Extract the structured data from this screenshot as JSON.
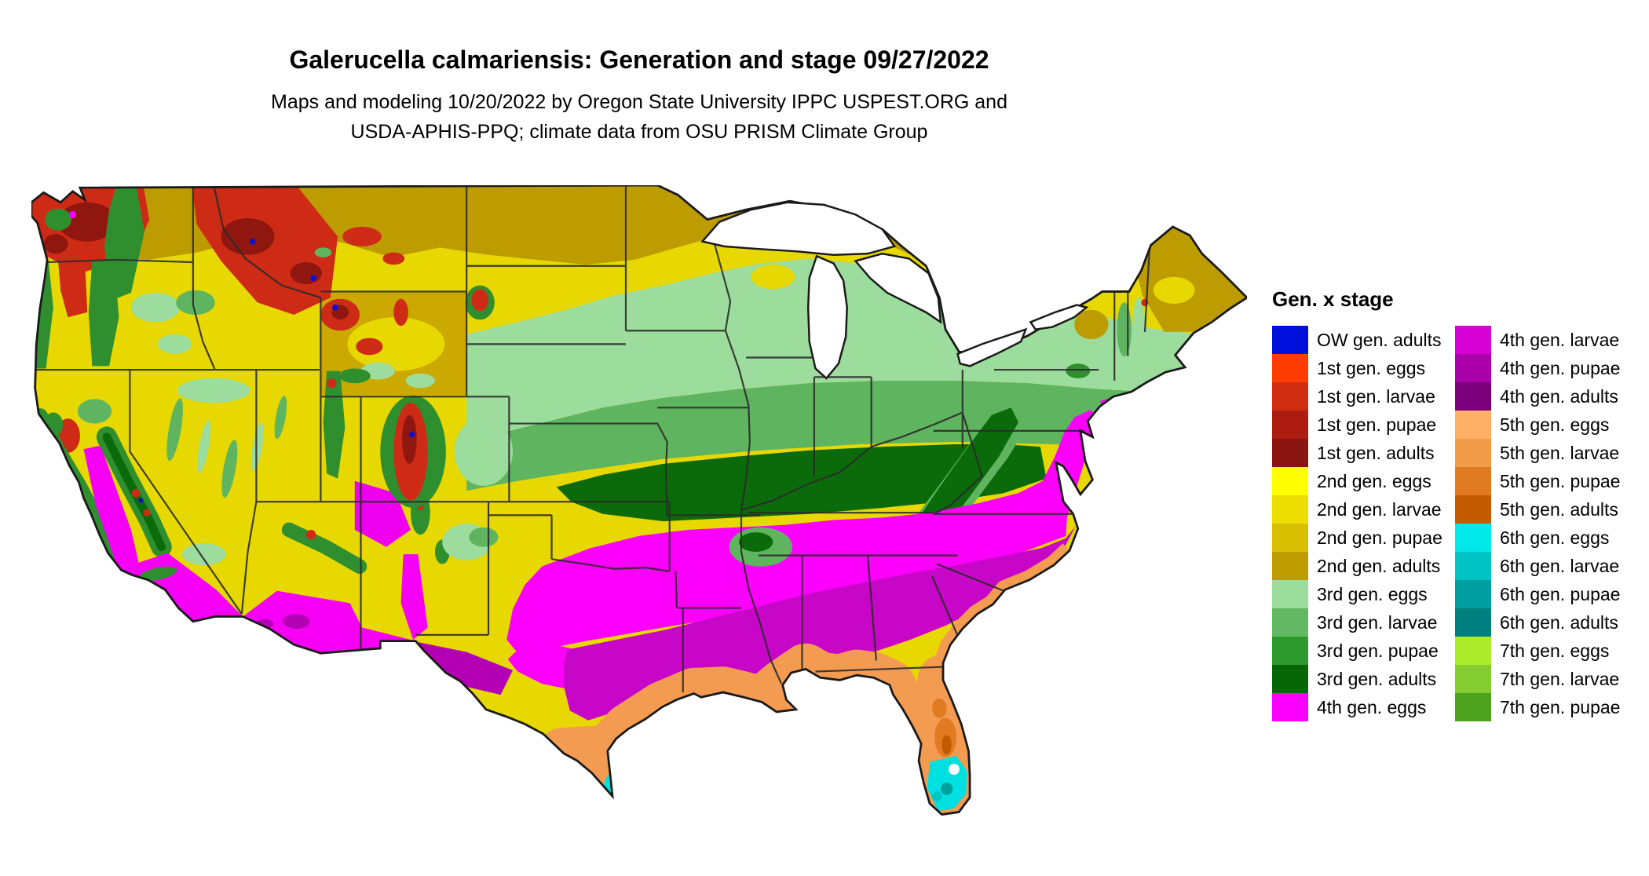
{
  "header": {
    "title": "Galerucella calmariensis: Generation and stage 09/27/2022",
    "subtitle_line1": "Maps and modeling 10/20/2022 by Oregon State University IPPC USPEST.ORG and",
    "subtitle_line2": "USDA-APHIS-PPQ; climate data from OSU PRISM Climate Group"
  },
  "legend": {
    "title": "Gen. x stage",
    "columns": [
      [
        {
          "label": "OW gen. adults",
          "color": "#0010DC"
        },
        {
          "label": "1st gen. eggs",
          "color": "#FF3D00"
        },
        {
          "label": "1st gen. larvae",
          "color": "#D02C12"
        },
        {
          "label": "1st gen. pupae",
          "color": "#AD1C10"
        },
        {
          "label": "1st gen. adults",
          "color": "#8A1510"
        },
        {
          "label": "2nd gen. eggs",
          "color": "#FFFF00"
        },
        {
          "label": "2nd gen. larvae",
          "color": "#EDDD00"
        },
        {
          "label": "2nd gen. pupae",
          "color": "#D8BE00"
        },
        {
          "label": "2nd gen. adults",
          "color": "#BC9C00"
        },
        {
          "label": "3rd gen. eggs",
          "color": "#9CDC9C"
        },
        {
          "label": "3rd gen. larvae",
          "color": "#63B863"
        },
        {
          "label": "3rd gen. pupae",
          "color": "#2E9A2E"
        },
        {
          "label": "3rd gen. adults",
          "color": "#076607"
        },
        {
          "label": "4th gen. eggs",
          "color": "#FB00FB"
        }
      ],
      [
        {
          "label": "4th gen. larvae",
          "color": "#D400D4"
        },
        {
          "label": "4th gen. pupae",
          "color": "#A900A9"
        },
        {
          "label": "4th gen. adults",
          "color": "#7C007C"
        },
        {
          "label": "5th gen. eggs",
          "color": "#FFB066"
        },
        {
          "label": "5th gen. larvae",
          "color": "#F29B49"
        },
        {
          "label": "5th gen. pupae",
          "color": "#E07B22"
        },
        {
          "label": "5th gen. adults",
          "color": "#C25A00"
        },
        {
          "label": "6th gen. eggs",
          "color": "#00E8E8"
        },
        {
          "label": "6th gen. larvae",
          "color": "#00C4C4"
        },
        {
          "label": "6th gen. pupae",
          "color": "#00A0A0"
        },
        {
          "label": "6th gen. adults",
          "color": "#007F7F"
        },
        {
          "label": "7th gen. eggs",
          "color": "#ABEB29"
        },
        {
          "label": "7th gen. larvae",
          "color": "#84CC30"
        },
        {
          "label": "7th gen. pupae",
          "color": "#4FA21D"
        }
      ]
    ]
  }
}
